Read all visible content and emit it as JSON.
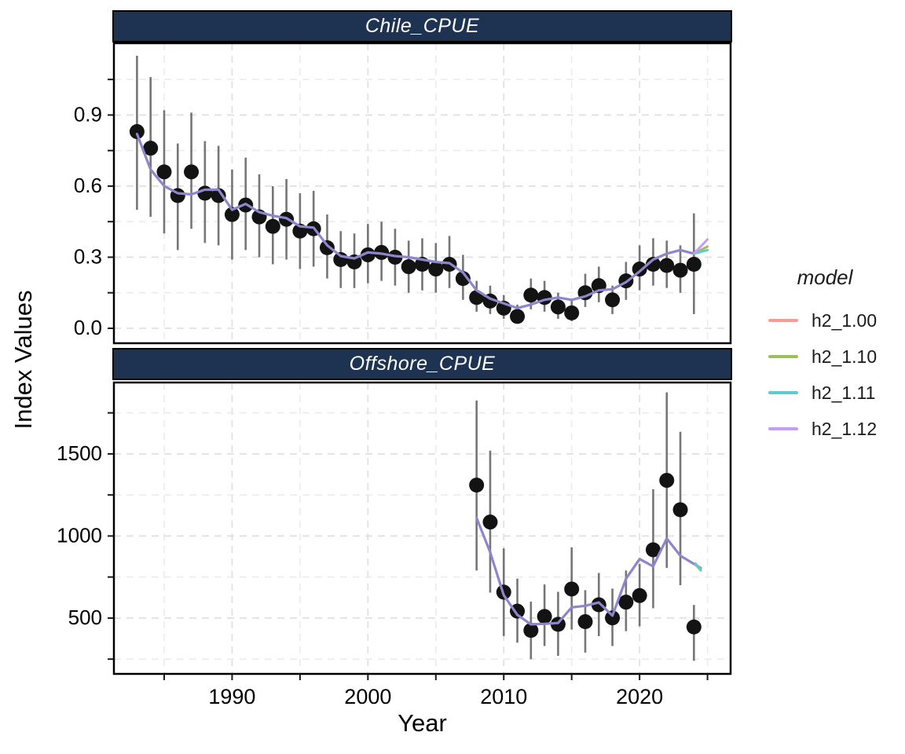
{
  "figure": {
    "xlabel": "Year",
    "ylabel": "Index Values"
  },
  "legend": {
    "title": "model",
    "entries": [
      {
        "label": "h2_1.00",
        "color": "#f79c96"
      },
      {
        "label": "h2_1.10",
        "color": "#9dc05e"
      },
      {
        "label": "h2_1.11",
        "color": "#60cbcd"
      },
      {
        "label": "h2_1.12",
        "color": "#c79df1"
      }
    ]
  },
  "style": {
    "strip_fill": "#1e3252",
    "strip_text_color": "#ffffff",
    "panel_border": "#000000",
    "grid_major": "#dedede",
    "grid_minor": "#ececec",
    "errorbar_color": "#767676",
    "point_color": "#131313",
    "fit_line_color": "#8d86cd",
    "tick_color": "#1a1a1a",
    "text_color": "#000000"
  },
  "axis": {
    "x": {
      "lim": [
        1981.3,
        2026.7
      ],
      "major": [
        1990,
        2000,
        2010,
        2020
      ],
      "minor": [
        1985,
        1995,
        2005,
        2015,
        2025
      ],
      "tick_labels": [
        "1990",
        "2000",
        "2010",
        "2020"
      ]
    }
  },
  "chart_data": [
    {
      "type": "scatter",
      "subtype": "points-with-error-bars-and-model-fit-lines",
      "title": "Chile_CPUE",
      "y_axis": {
        "lim": [
          -0.063,
          1.203
        ],
        "major": [
          0.0,
          0.3,
          0.6,
          0.9
        ],
        "minor": [
          0.15,
          0.45,
          0.75,
          1.05
        ],
        "tick_labels": [
          "0.0",
          "0.3",
          "0.6",
          "0.9"
        ]
      },
      "points": {
        "years": [
          1983,
          1984,
          1985,
          1986,
          1987,
          1988,
          1989,
          1990,
          1991,
          1992,
          1993,
          1994,
          1995,
          1996,
          1997,
          1998,
          1999,
          2000,
          2001,
          2002,
          2003,
          2004,
          2005,
          2006,
          2007,
          2008,
          2009,
          2010,
          2011,
          2012,
          2013,
          2014,
          2015,
          2016,
          2017,
          2018,
          2019,
          2020,
          2021,
          2022,
          2023,
          2024
        ],
        "values": [
          0.83,
          0.76,
          0.66,
          0.56,
          0.66,
          0.57,
          0.56,
          0.48,
          0.52,
          0.47,
          0.43,
          0.46,
          0.41,
          0.42,
          0.34,
          0.29,
          0.28,
          0.31,
          0.32,
          0.3,
          0.26,
          0.27,
          0.25,
          0.27,
          0.21,
          0.13,
          0.115,
          0.085,
          0.05,
          0.14,
          0.13,
          0.09,
          0.065,
          0.15,
          0.18,
          0.12,
          0.2,
          0.25,
          0.27,
          0.265,
          0.245,
          0.27
        ],
        "lo": [
          0.5,
          0.47,
          0.4,
          0.33,
          0.42,
          0.36,
          0.35,
          0.29,
          0.33,
          0.3,
          0.27,
          0.29,
          0.25,
          0.26,
          0.21,
          0.17,
          0.17,
          0.19,
          0.2,
          0.18,
          0.15,
          0.16,
          0.15,
          0.17,
          0.12,
          0.07,
          0.06,
          0.04,
          0.02,
          0.08,
          0.07,
          0.04,
          0.03,
          0.09,
          0.11,
          0.06,
          0.12,
          0.16,
          0.18,
          0.17,
          0.15,
          0.06
        ],
        "hi": [
          1.15,
          1.06,
          0.92,
          0.78,
          0.91,
          0.79,
          0.77,
          0.67,
          0.72,
          0.65,
          0.6,
          0.63,
          0.57,
          0.58,
          0.48,
          0.41,
          0.4,
          0.44,
          0.45,
          0.42,
          0.37,
          0.38,
          0.36,
          0.39,
          0.31,
          0.2,
          0.18,
          0.14,
          0.1,
          0.21,
          0.2,
          0.15,
          0.12,
          0.23,
          0.26,
          0.18,
          0.28,
          0.35,
          0.38,
          0.37,
          0.35,
          0.485
        ]
      },
      "fit_line": {
        "years": [
          1983,
          1984,
          1985,
          1986,
          1987,
          1988,
          1989,
          1990,
          1991,
          1992,
          1993,
          1994,
          1995,
          1996,
          1997,
          1998,
          1999,
          2000,
          2001,
          2002,
          2003,
          2004,
          2005,
          2006,
          2007,
          2008,
          2009,
          2010,
          2011,
          2012,
          2013,
          2014,
          2015,
          2016,
          2017,
          2018,
          2019,
          2020,
          2021,
          2022,
          2023,
          2024
        ],
        "values": [
          0.82,
          0.67,
          0.6,
          0.57,
          0.565,
          0.585,
          0.585,
          0.5,
          0.525,
          0.49,
          0.475,
          0.465,
          0.43,
          0.425,
          0.35,
          0.305,
          0.295,
          0.32,
          0.315,
          0.305,
          0.3,
          0.29,
          0.28,
          0.275,
          0.235,
          0.16,
          0.125,
          0.105,
          0.085,
          0.1,
          0.12,
          0.13,
          0.12,
          0.135,
          0.16,
          0.165,
          0.195,
          0.24,
          0.29,
          0.315,
          0.33,
          0.315
        ]
      },
      "fit_tails": [
        {
          "model": "h2_1.10",
          "color": "#9dc05e",
          "years": [
            2024,
            2025
          ],
          "values": [
            0.315,
            0.345
          ]
        },
        {
          "model": "h2_1.11",
          "color": "#60cbcd",
          "years": [
            2024,
            2025
          ],
          "values": [
            0.315,
            0.33
          ]
        },
        {
          "model": "h2_1.12",
          "color": "#c79df1",
          "years": [
            2024,
            2025
          ],
          "values": [
            0.315,
            0.375
          ]
        }
      ]
    },
    {
      "type": "scatter",
      "subtype": "points-with-error-bars-and-model-fit-lines",
      "title": "Offshore_CPUE",
      "y_axis": {
        "lim": [
          160,
          1935
        ],
        "major": [
          500,
          1000,
          1500
        ],
        "minor": [
          250,
          750,
          1250,
          1750
        ],
        "tick_labels": [
          "500",
          "1000",
          "1500"
        ]
      },
      "points": {
        "years": [
          2008,
          2009,
          2010,
          2011,
          2012,
          2013,
          2014,
          2015,
          2016,
          2017,
          2018,
          2019,
          2020,
          2021,
          2022,
          2023,
          2024
        ],
        "values": [
          1310,
          1085,
          658,
          542,
          425,
          510,
          462,
          677,
          478,
          581,
          501,
          597,
          637,
          916,
          1339,
          1160,
          446
        ],
        "lo": [
          790,
          655,
          390,
          350,
          250,
          330,
          270,
          430,
          290,
          390,
          330,
          420,
          450,
          560,
          805,
          700,
          240
        ],
        "hi": [
          1825,
          1520,
          925,
          740,
          600,
          705,
          660,
          930,
          670,
          775,
          680,
          790,
          830,
          1285,
          1875,
          1635,
          580
        ]
      },
      "fit_line": {
        "years": [
          2008,
          2009,
          2010,
          2011,
          2012,
          2013,
          2014,
          2015,
          2016,
          2017,
          2018,
          2019,
          2020,
          2021,
          2022,
          2023,
          2024.5
        ],
        "values": [
          1110,
          900,
          640,
          520,
          462,
          465,
          470,
          565,
          575,
          595,
          515,
          740,
          860,
          815,
          985,
          880,
          805
        ]
      },
      "fit_tails": [
        {
          "model": "h2_1.10",
          "color": "#9dc05e",
          "years": [
            2024.1,
            2024.5
          ],
          "values": [
            828,
            790
          ]
        },
        {
          "model": "h2_1.11",
          "color": "#60cbcd",
          "years": [
            2024.1,
            2024.5
          ],
          "values": [
            833,
            797
          ]
        }
      ]
    }
  ]
}
